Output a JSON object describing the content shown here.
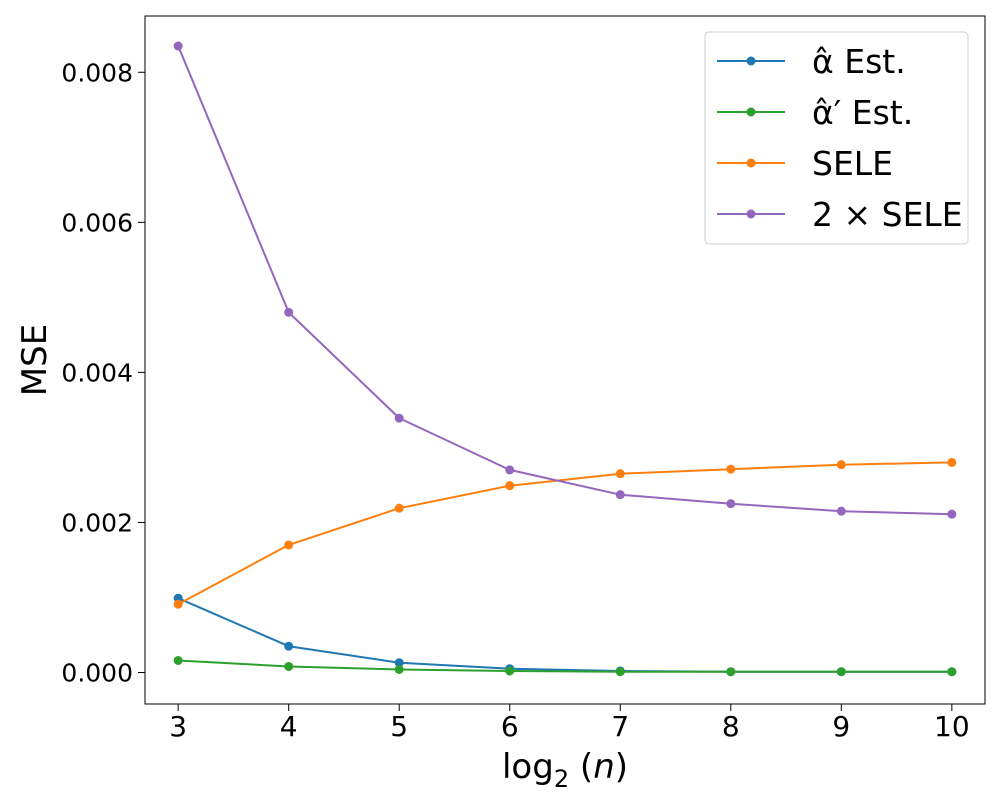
{
  "chart_data": {
    "type": "line",
    "xlabel": "log2(n)",
    "ylabel": "MSE",
    "x": [
      3,
      4,
      5,
      6,
      7,
      8,
      9,
      10
    ],
    "xlim": [
      2.7,
      10.3
    ],
    "ylim": [
      -0.00042,
      0.00875
    ],
    "x_ticks": [
      3,
      4,
      5,
      6,
      7,
      8,
      9,
      10
    ],
    "y_ticks": [
      0.0,
      0.002,
      0.004,
      0.006,
      0.008
    ],
    "y_tick_labels": [
      "0.000",
      "0.002",
      "0.004",
      "0.006",
      "0.008"
    ],
    "grid": false,
    "legend_position": "top-right",
    "series": [
      {
        "name": "α̂ Est.",
        "color": "#1f77b4",
        "values": [
          0.00099,
          0.00035,
          0.00013,
          5e-05,
          2e-05,
          1e-05,
          1e-05,
          1e-05
        ]
      },
      {
        "name": "α̂′ Est.",
        "color": "#2ca02c",
        "values": [
          0.00016,
          8e-05,
          4e-05,
          2e-05,
          1e-05,
          1e-05,
          1e-05,
          1e-05
        ]
      },
      {
        "name": "SELE",
        "color": "#ff7f0e",
        "values": [
          0.00091,
          0.0017,
          0.00219,
          0.00249,
          0.00265,
          0.00271,
          0.00277,
          0.0028
        ]
      },
      {
        "name": "2 × SELE",
        "color": "#9467bd",
        "values": [
          0.00835,
          0.0048,
          0.00339,
          0.0027,
          0.00237,
          0.00225,
          0.00215,
          0.00211
        ]
      }
    ]
  }
}
